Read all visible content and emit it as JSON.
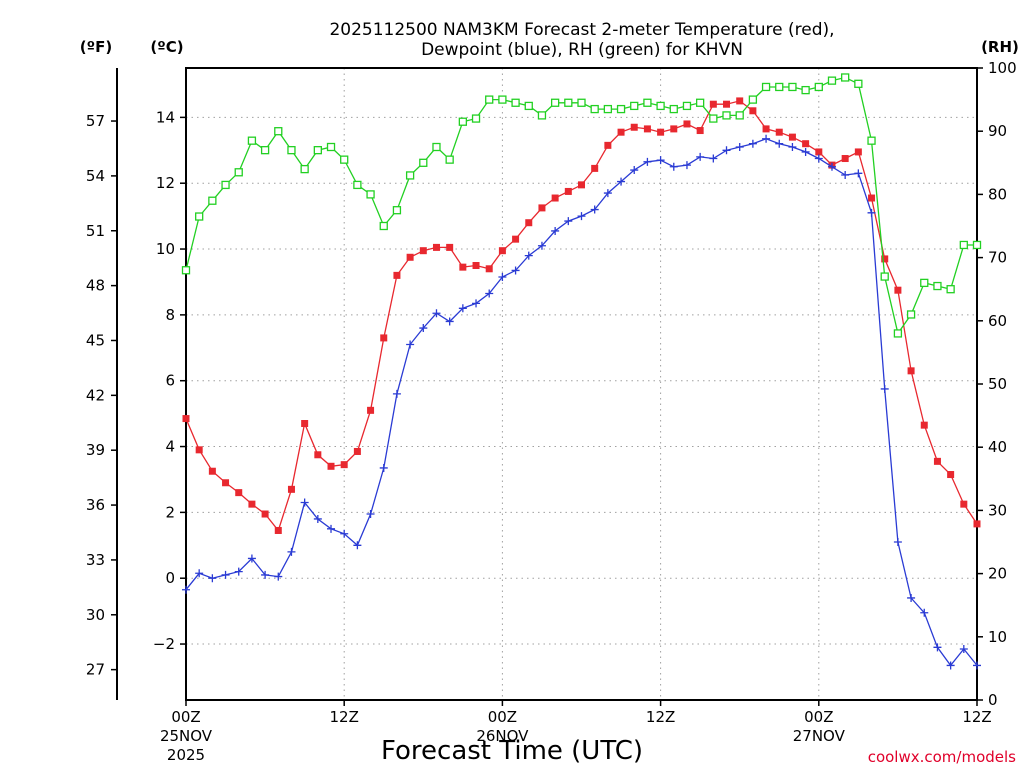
{
  "chart_data": {
    "type": "line",
    "title": "2025112500 NAM3KM Forecast 2-meter Temperature (red),",
    "title_line2": "Dewpoint (blue), RH (green) for KHVN",
    "xlabel": "Forecast Time (UTC)",
    "credit": "coolwx.com/models",
    "x_hours": [
      0,
      1,
      2,
      3,
      4,
      5,
      6,
      7,
      8,
      9,
      10,
      11,
      12,
      13,
      14,
      15,
      16,
      17,
      18,
      19,
      20,
      21,
      22,
      23,
      24,
      25,
      26,
      27,
      28,
      29,
      30,
      31,
      32,
      33,
      34,
      35,
      36,
      37,
      38,
      39,
      40,
      41,
      42,
      43,
      44,
      45,
      46,
      47,
      48,
      49,
      50,
      51,
      52,
      53,
      54,
      55,
      56,
      57,
      58,
      59,
      60
    ],
    "xlim": [
      0,
      60
    ],
    "x_ticks": [
      {
        "hour": 0,
        "lines": [
          "00Z",
          "25NOV",
          "2025"
        ]
      },
      {
        "hour": 12,
        "lines": [
          "12Z"
        ]
      },
      {
        "hour": 24,
        "lines": [
          "00Z",
          "26NOV"
        ]
      },
      {
        "hour": 36,
        "lines": [
          "12Z"
        ]
      },
      {
        "hour": 48,
        "lines": [
          "00Z",
          "27NOV"
        ]
      },
      {
        "hour": 60,
        "lines": [
          "12Z"
        ]
      }
    ],
    "ylim_c": [
      -3.7,
      15.5
    ],
    "y_ticks_c": [
      -2,
      0,
      2,
      4,
      6,
      8,
      10,
      12,
      14
    ],
    "y_ticks_f": [
      27,
      30,
      33,
      36,
      39,
      42,
      45,
      48,
      51,
      54,
      57
    ],
    "ylim_rh": [
      0,
      100
    ],
    "y_ticks_rh": [
      0,
      10,
      20,
      30,
      40,
      50,
      60,
      70,
      80,
      90,
      100
    ],
    "unit_left_f": "(ºF)",
    "unit_left_c": "(ºC)",
    "unit_right": "(RH)",
    "grid": true,
    "series": [
      {
        "name": "Temperature",
        "color": "#e8282f",
        "marker": "filled-square",
        "axis": "celsius",
        "values": [
          4.85,
          3.9,
          3.25,
          2.9,
          2.6,
          2.25,
          1.95,
          1.45,
          2.7,
          4.7,
          3.75,
          3.4,
          3.45,
          3.85,
          5.1,
          7.3,
          9.2,
          9.75,
          9.95,
          10.05,
          10.05,
          9.45,
          9.5,
          9.4,
          9.95,
          10.3,
          10.8,
          11.25,
          11.55,
          11.75,
          11.95,
          12.45,
          13.15,
          13.55,
          13.7,
          13.65,
          13.55,
          13.65,
          13.8,
          13.6,
          14.4,
          14.4,
          14.5,
          14.2,
          13.65,
          13.55,
          13.4,
          13.2,
          12.95,
          12.55,
          12.75,
          12.95,
          11.55,
          9.7,
          8.75,
          6.3,
          4.65,
          3.55,
          3.15,
          2.25,
          1.65
        ]
      },
      {
        "name": "Dewpoint",
        "color": "#2a3bd4",
        "marker": "plus",
        "axis": "celsius",
        "values": [
          -0.35,
          0.15,
          0.0,
          0.1,
          0.2,
          0.6,
          0.1,
          0.05,
          0.8,
          2.3,
          1.8,
          1.5,
          1.35,
          1.0,
          1.95,
          3.35,
          5.6,
          7.1,
          7.6,
          8.05,
          7.8,
          8.2,
          8.35,
          8.65,
          9.15,
          9.35,
          9.8,
          10.1,
          10.55,
          10.85,
          11.0,
          11.2,
          11.7,
          12.05,
          12.4,
          12.65,
          12.7,
          12.5,
          12.55,
          12.8,
          12.75,
          13.0,
          13.1,
          13.2,
          13.35,
          13.2,
          13.1,
          12.95,
          12.75,
          12.5,
          12.25,
          12.3,
          11.1,
          5.75,
          1.1,
          -0.6,
          -1.05,
          -2.1,
          -2.65,
          -2.15,
          -2.65
        ]
      },
      {
        "name": "RH",
        "color": "#22d022",
        "marker": "open-square",
        "axis": "rh",
        "values": [
          68,
          76.5,
          79,
          81.5,
          83.5,
          88.5,
          87,
          90,
          87,
          84,
          87,
          87.5,
          85.5,
          81.5,
          80,
          75,
          77.5,
          83,
          85,
          87.5,
          85.5,
          91.5,
          92,
          95,
          95,
          94.5,
          94,
          92.5,
          94.5,
          94.5,
          94.5,
          93.5,
          93.5,
          93.5,
          94,
          94.5,
          94,
          93.5,
          94,
          94.5,
          92,
          92.5,
          92.5,
          95,
          97,
          97,
          97,
          96.5,
          97,
          98,
          98.5,
          97.5,
          88.5,
          67,
          58,
          61,
          66,
          65.5,
          65,
          72,
          72
        ]
      }
    ]
  }
}
